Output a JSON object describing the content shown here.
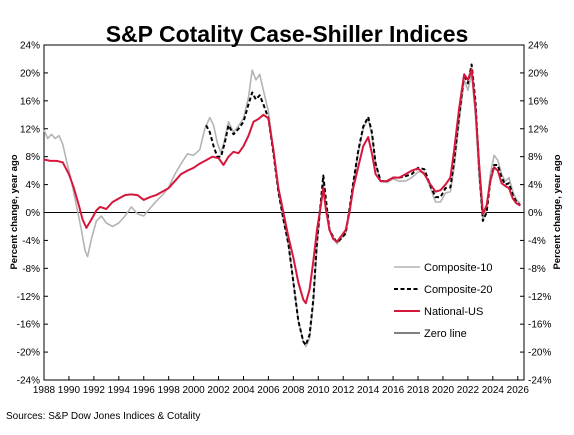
{
  "chart_data": {
    "type": "line",
    "title": "S&P Cotality Case-Shiller Indices",
    "ylabel_left": "Percent change, year ago",
    "ylabel_right": "Percent change, year ago",
    "source": "Sources: S&P Dow Jones Indices & Cotality",
    "xlim": [
      1988,
      2026.5
    ],
    "ylim": [
      -24,
      24
    ],
    "x_ticks": [
      1988,
      1990,
      1992,
      1994,
      1996,
      1998,
      2000,
      2002,
      2004,
      2006,
      2008,
      2010,
      2012,
      2014,
      2016,
      2018,
      2020,
      2022,
      2024,
      2026
    ],
    "y_ticks": [
      24,
      20,
      16,
      12,
      8,
      4,
      0,
      -4,
      -8,
      -12,
      -16,
      -20,
      -24
    ],
    "y_tick_labels": [
      "24%",
      "20%",
      "16%",
      "12%",
      "8%",
      "4%",
      "0%",
      "-4%",
      "-8%",
      "-12%",
      "-16%",
      "-20%",
      "-24%"
    ],
    "grid": false,
    "legend_position": "lower-right",
    "series": [
      {
        "name": "Composite-10",
        "color": "#b4b4b4",
        "dash": "solid",
        "points": [
          [
            1988.0,
            11.8
          ],
          [
            1988.3,
            10.6
          ],
          [
            1988.6,
            11.2
          ],
          [
            1988.9,
            10.6
          ],
          [
            1989.2,
            11.0
          ],
          [
            1989.5,
            9.8
          ],
          [
            1989.8,
            7.5
          ],
          [
            1990.2,
            4.5
          ],
          [
            1990.6,
            1.0
          ],
          [
            1991.0,
            -2.5
          ],
          [
            1991.3,
            -5.5
          ],
          [
            1991.5,
            -6.3
          ],
          [
            1991.8,
            -3.8
          ],
          [
            1992.2,
            -1.2
          ],
          [
            1992.6,
            -0.5
          ],
          [
            1993.0,
            -1.5
          ],
          [
            1993.5,
            -2.0
          ],
          [
            1994.0,
            -1.5
          ],
          [
            1994.5,
            -0.5
          ],
          [
            1995.0,
            0.8
          ],
          [
            1995.5,
            -0.2
          ],
          [
            1996.0,
            -0.5
          ],
          [
            1996.5,
            0.6
          ],
          [
            1997.0,
            1.6
          ],
          [
            1997.5,
            2.5
          ],
          [
            1998.0,
            3.6
          ],
          [
            1998.5,
            5.5
          ],
          [
            1999.0,
            7.0
          ],
          [
            1999.5,
            8.4
          ],
          [
            2000.0,
            8.2
          ],
          [
            2000.5,
            9.0
          ],
          [
            2000.9,
            12.0
          ],
          [
            2001.3,
            13.6
          ],
          [
            2001.6,
            12.5
          ],
          [
            2001.9,
            10.0
          ],
          [
            2002.2,
            8.5
          ],
          [
            2002.5,
            10.5
          ],
          [
            2002.8,
            13.0
          ],
          [
            2003.2,
            11.5
          ],
          [
            2003.6,
            12.4
          ],
          [
            2004.0,
            13.5
          ],
          [
            2004.4,
            16.5
          ],
          [
            2004.7,
            20.4
          ],
          [
            2005.0,
            19.0
          ],
          [
            2005.3,
            19.8
          ],
          [
            2005.6,
            17.5
          ],
          [
            2006.0,
            14.5
          ],
          [
            2006.4,
            9.0
          ],
          [
            2006.8,
            3.0
          ],
          [
            2007.2,
            -1.0
          ],
          [
            2007.6,
            -4.5
          ],
          [
            2008.0,
            -10.0
          ],
          [
            2008.4,
            -15.5
          ],
          [
            2008.8,
            -18.5
          ],
          [
            2009.0,
            -19.2
          ],
          [
            2009.3,
            -18.0
          ],
          [
            2009.6,
            -13.0
          ],
          [
            2009.9,
            -5.0
          ],
          [
            2010.2,
            1.0
          ],
          [
            2010.4,
            4.5
          ],
          [
            2010.6,
            1.0
          ],
          [
            2010.9,
            -2.5
          ],
          [
            2011.2,
            -3.5
          ],
          [
            2011.5,
            -4.5
          ],
          [
            2011.8,
            -3.8
          ],
          [
            2012.2,
            -3.0
          ],
          [
            2012.5,
            0.5
          ],
          [
            2012.8,
            4.0
          ],
          [
            2013.2,
            8.5
          ],
          [
            2013.6,
            12.0
          ],
          [
            2014.0,
            13.5
          ],
          [
            2014.3,
            11.0
          ],
          [
            2014.6,
            7.0
          ],
          [
            2015.0,
            4.5
          ],
          [
            2015.5,
            4.3
          ],
          [
            2016.0,
            4.8
          ],
          [
            2016.5,
            4.5
          ],
          [
            2017.0,
            4.5
          ],
          [
            2017.5,
            5.0
          ],
          [
            2018.0,
            5.8
          ],
          [
            2018.5,
            5.8
          ],
          [
            2019.0,
            3.5
          ],
          [
            2019.4,
            1.5
          ],
          [
            2019.8,
            1.5
          ],
          [
            2020.2,
            2.8
          ],
          [
            2020.6,
            3.0
          ],
          [
            2020.9,
            6.5
          ],
          [
            2021.3,
            13.0
          ],
          [
            2021.7,
            19.0
          ],
          [
            2022.0,
            17.5
          ],
          [
            2022.3,
            20.0
          ],
          [
            2022.6,
            14.0
          ],
          [
            2022.9,
            5.0
          ],
          [
            2023.2,
            -1.2
          ],
          [
            2023.5,
            0.5
          ],
          [
            2023.8,
            5.5
          ],
          [
            2024.1,
            8.2
          ],
          [
            2024.4,
            7.5
          ],
          [
            2024.7,
            5.5
          ],
          [
            2025.0,
            4.5
          ],
          [
            2025.3,
            5.0
          ],
          [
            2025.6,
            3.0
          ],
          [
            2025.9,
            1.8
          ],
          [
            2026.2,
            1.3
          ]
        ]
      },
      {
        "name": "Composite-20",
        "color": "#000000",
        "dash": "dashed",
        "points": [
          [
            2001.0,
            12.5
          ],
          [
            2001.3,
            11.5
          ],
          [
            2001.6,
            9.5
          ],
          [
            2001.9,
            8.0
          ],
          [
            2002.2,
            8.0
          ],
          [
            2002.5,
            10.0
          ],
          [
            2002.8,
            12.5
          ],
          [
            2003.2,
            11.2
          ],
          [
            2003.6,
            12.0
          ],
          [
            2004.0,
            13.0
          ],
          [
            2004.4,
            15.5
          ],
          [
            2004.7,
            17.2
          ],
          [
            2005.0,
            16.2
          ],
          [
            2005.3,
            16.8
          ],
          [
            2005.6,
            15.5
          ],
          [
            2006.0,
            13.5
          ],
          [
            2006.4,
            8.5
          ],
          [
            2006.8,
            3.0
          ],
          [
            2007.2,
            -1.0
          ],
          [
            2007.6,
            -4.5
          ],
          [
            2008.0,
            -10.0
          ],
          [
            2008.4,
            -15.5
          ],
          [
            2008.8,
            -18.5
          ],
          [
            2009.0,
            -19.0
          ],
          [
            2009.3,
            -17.5
          ],
          [
            2009.6,
            -12.5
          ],
          [
            2009.9,
            -4.0
          ],
          [
            2010.2,
            1.5
          ],
          [
            2010.4,
            5.3
          ],
          [
            2010.6,
            2.0
          ],
          [
            2010.9,
            -2.5
          ],
          [
            2011.2,
            -3.5
          ],
          [
            2011.5,
            -4.3
          ],
          [
            2011.8,
            -3.8
          ],
          [
            2012.2,
            -3.0
          ],
          [
            2012.5,
            0.5
          ],
          [
            2012.8,
            4.2
          ],
          [
            2013.2,
            8.8
          ],
          [
            2013.6,
            12.3
          ],
          [
            2014.0,
            13.7
          ],
          [
            2014.3,
            11.5
          ],
          [
            2014.6,
            7.0
          ],
          [
            2015.0,
            4.5
          ],
          [
            2015.5,
            4.5
          ],
          [
            2016.0,
            5.0
          ],
          [
            2016.5,
            5.0
          ],
          [
            2017.0,
            5.2
          ],
          [
            2017.5,
            5.5
          ],
          [
            2018.0,
            6.4
          ],
          [
            2018.5,
            6.2
          ],
          [
            2019.0,
            3.8
          ],
          [
            2019.4,
            2.2
          ],
          [
            2019.8,
            2.2
          ],
          [
            2020.2,
            3.5
          ],
          [
            2020.6,
            3.6
          ],
          [
            2020.9,
            7.5
          ],
          [
            2021.3,
            14.0
          ],
          [
            2021.7,
            19.8
          ],
          [
            2022.0,
            18.5
          ],
          [
            2022.3,
            21.2
          ],
          [
            2022.6,
            16.0
          ],
          [
            2022.9,
            6.5
          ],
          [
            2023.2,
            -1.2
          ],
          [
            2023.5,
            0.0
          ],
          [
            2023.8,
            4.5
          ],
          [
            2024.1,
            6.8
          ],
          [
            2024.4,
            6.8
          ],
          [
            2024.7,
            5.0
          ],
          [
            2025.0,
            4.0
          ],
          [
            2025.3,
            4.2
          ],
          [
            2025.6,
            2.5
          ],
          [
            2025.9,
            1.5
          ],
          [
            2026.2,
            1.0
          ]
        ]
      },
      {
        "name": "National-US",
        "color": "#d6173c",
        "dash": "solid",
        "points": [
          [
            1988.0,
            7.6
          ],
          [
            1988.5,
            7.4
          ],
          [
            1989.0,
            7.4
          ],
          [
            1989.5,
            7.2
          ],
          [
            1990.0,
            5.5
          ],
          [
            1990.4,
            3.5
          ],
          [
            1990.8,
            1.0
          ],
          [
            1991.1,
            -1.0
          ],
          [
            1991.4,
            -2.2
          ],
          [
            1991.8,
            -1.0
          ],
          [
            1992.2,
            0.3
          ],
          [
            1992.5,
            0.8
          ],
          [
            1993.0,
            0.5
          ],
          [
            1993.5,
            1.5
          ],
          [
            1994.0,
            2.0
          ],
          [
            1994.5,
            2.5
          ],
          [
            1995.0,
            2.6
          ],
          [
            1995.5,
            2.5
          ],
          [
            1996.0,
            1.8
          ],
          [
            1996.5,
            2.2
          ],
          [
            1997.0,
            2.5
          ],
          [
            1997.5,
            3.0
          ],
          [
            1998.0,
            3.5
          ],
          [
            1998.5,
            4.5
          ],
          [
            1999.0,
            5.5
          ],
          [
            1999.5,
            6.0
          ],
          [
            2000.0,
            6.4
          ],
          [
            2000.5,
            7.0
          ],
          [
            2001.0,
            7.5
          ],
          [
            2001.5,
            8.0
          ],
          [
            2002.0,
            7.8
          ],
          [
            2002.4,
            6.8
          ],
          [
            2002.8,
            8.0
          ],
          [
            2003.2,
            8.7
          ],
          [
            2003.6,
            8.5
          ],
          [
            2004.0,
            9.5
          ],
          [
            2004.4,
            11.0
          ],
          [
            2004.8,
            13.0
          ],
          [
            2005.2,
            13.4
          ],
          [
            2005.6,
            14.0
          ],
          [
            2006.0,
            13.5
          ],
          [
            2006.4,
            9.0
          ],
          [
            2006.8,
            3.5
          ],
          [
            2007.2,
            0.0
          ],
          [
            2007.6,
            -3.5
          ],
          [
            2008.0,
            -6.5
          ],
          [
            2008.4,
            -10.0
          ],
          [
            2008.8,
            -12.5
          ],
          [
            2009.0,
            -13.0
          ],
          [
            2009.3,
            -11.0
          ],
          [
            2009.6,
            -7.0
          ],
          [
            2009.9,
            -2.5
          ],
          [
            2010.2,
            1.0
          ],
          [
            2010.4,
            3.5
          ],
          [
            2010.6,
            0.5
          ],
          [
            2010.9,
            -2.5
          ],
          [
            2011.2,
            -3.8
          ],
          [
            2011.5,
            -4.2
          ],
          [
            2011.8,
            -3.5
          ],
          [
            2012.2,
            -2.5
          ],
          [
            2012.5,
            0.0
          ],
          [
            2012.8,
            3.5
          ],
          [
            2013.2,
            6.5
          ],
          [
            2013.6,
            9.5
          ],
          [
            2014.0,
            10.8
          ],
          [
            2014.3,
            8.5
          ],
          [
            2014.6,
            5.5
          ],
          [
            2015.0,
            4.5
          ],
          [
            2015.5,
            4.5
          ],
          [
            2016.0,
            5.0
          ],
          [
            2016.5,
            5.0
          ],
          [
            2017.0,
            5.5
          ],
          [
            2017.5,
            6.0
          ],
          [
            2018.0,
            6.3
          ],
          [
            2018.5,
            5.5
          ],
          [
            2019.0,
            4.0
          ],
          [
            2019.4,
            3.0
          ],
          [
            2019.8,
            3.2
          ],
          [
            2020.2,
            4.0
          ],
          [
            2020.6,
            5.0
          ],
          [
            2020.9,
            9.0
          ],
          [
            2021.3,
            15.0
          ],
          [
            2021.7,
            19.8
          ],
          [
            2022.0,
            19.0
          ],
          [
            2022.3,
            20.5
          ],
          [
            2022.6,
            15.0
          ],
          [
            2022.9,
            7.0
          ],
          [
            2023.2,
            -0.2
          ],
          [
            2023.5,
            1.0
          ],
          [
            2023.8,
            4.5
          ],
          [
            2024.1,
            6.5
          ],
          [
            2024.4,
            6.0
          ],
          [
            2024.7,
            4.2
          ],
          [
            2025.0,
            3.8
          ],
          [
            2025.3,
            3.5
          ],
          [
            2025.6,
            2.0
          ],
          [
            2025.9,
            1.3
          ],
          [
            2026.2,
            1.0
          ]
        ]
      },
      {
        "name": "Zero line",
        "color": "#000000",
        "dash": "solid",
        "points": [
          [
            1988.0,
            0
          ],
          [
            2026.5,
            0
          ]
        ]
      }
    ]
  }
}
